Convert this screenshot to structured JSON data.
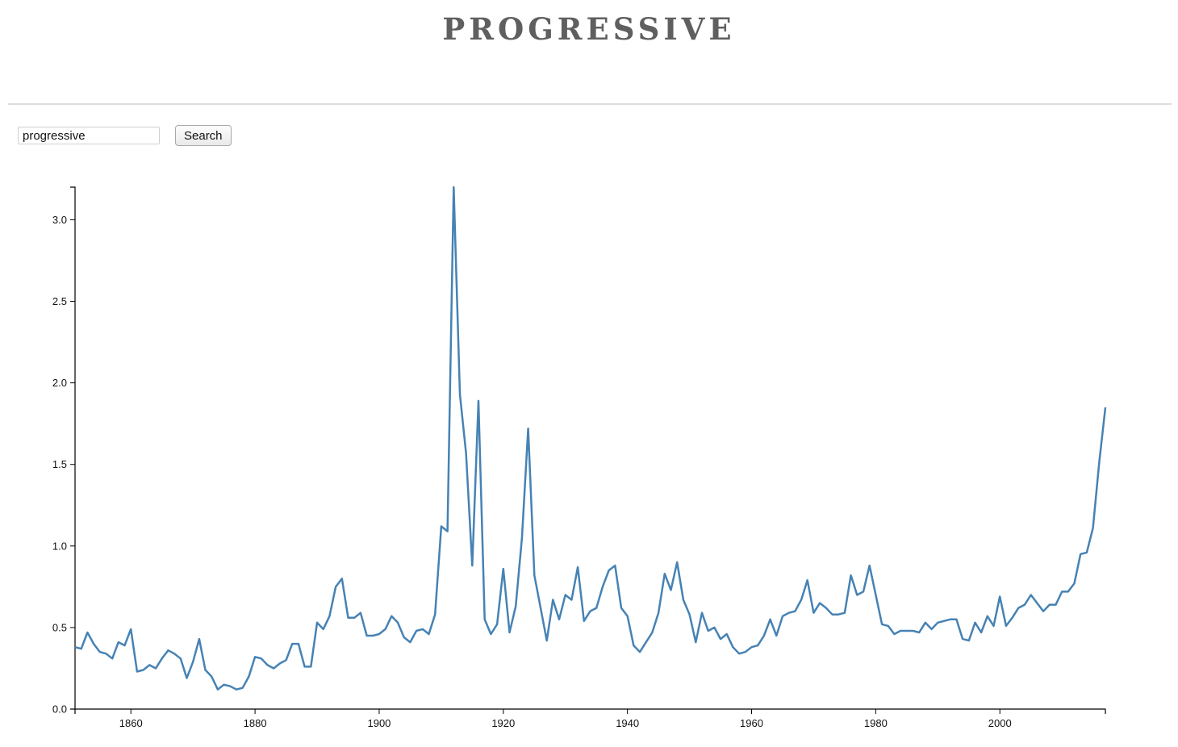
{
  "header": {
    "title": "PROGRESSIVE"
  },
  "search": {
    "value": "progressive",
    "button_label": "Search"
  },
  "colors": {
    "line": "#4682b4",
    "axis": "#000000",
    "title": "#5f5f5f"
  },
  "chart_data": {
    "type": "line",
    "title": "",
    "xlabel": "",
    "ylabel": "",
    "xlim": [
      1851,
      2017
    ],
    "ylim": [
      0,
      3.2
    ],
    "grid": false,
    "x_ticks": [
      1860,
      1880,
      1900,
      1920,
      1940,
      1960,
      1980,
      2000
    ],
    "y_ticks": [
      "0.0",
      "0.5",
      "1.0",
      "1.5",
      "2.0",
      "2.5",
      "3.0"
    ],
    "series": [
      {
        "x": [
          1851,
          1852,
          1853,
          1854,
          1855,
          1856,
          1857,
          1858,
          1859,
          1860,
          1861,
          1862,
          1863,
          1864,
          1865,
          1866,
          1867,
          1868,
          1869,
          1870,
          1871,
          1872,
          1873,
          1874,
          1875,
          1876,
          1877,
          1878,
          1879,
          1880,
          1881,
          1882,
          1883,
          1884,
          1885,
          1886,
          1887,
          1888,
          1889,
          1890,
          1891,
          1892,
          1893,
          1894,
          1895,
          1896,
          1897,
          1898,
          1899,
          1900,
          1901,
          1902,
          1903,
          1904,
          1905,
          1906,
          1907,
          1908,
          1909,
          1910,
          1911,
          1912,
          1913,
          1914,
          1915,
          1916,
          1917,
          1918,
          1919,
          1920,
          1921,
          1922,
          1923,
          1924,
          1925,
          1926,
          1927,
          1928,
          1929,
          1930,
          1931,
          1932,
          1933,
          1934,
          1935,
          1936,
          1937,
          1938,
          1939,
          1940,
          1941,
          1942,
          1943,
          1944,
          1945,
          1946,
          1947,
          1948,
          1949,
          1950,
          1951,
          1952,
          1953,
          1954,
          1955,
          1956,
          1957,
          1958,
          1959,
          1960,
          1961,
          1962,
          1963,
          1964,
          1965,
          1966,
          1967,
          1968,
          1969,
          1970,
          1971,
          1972,
          1973,
          1974,
          1975,
          1976,
          1977,
          1978,
          1979,
          1980,
          1981,
          1982,
          1983,
          1984,
          1985,
          1986,
          1987,
          1988,
          1989,
          1990,
          1991,
          1992,
          1993,
          1994,
          1995,
          1996,
          1997,
          1998,
          1999,
          2000,
          2001,
          2002,
          2003,
          2004,
          2005,
          2006,
          2007,
          2008,
          2009,
          2010,
          2011,
          2012,
          2013,
          2014,
          2015,
          2016,
          2017
        ],
        "values": [
          0.38,
          0.37,
          0.47,
          0.4,
          0.35,
          0.34,
          0.31,
          0.41,
          0.39,
          0.49,
          0.23,
          0.24,
          0.27,
          0.25,
          0.31,
          0.36,
          0.34,
          0.31,
          0.19,
          0.29,
          0.43,
          0.24,
          0.2,
          0.12,
          0.15,
          0.14,
          0.12,
          0.13,
          0.2,
          0.32,
          0.31,
          0.27,
          0.25,
          0.28,
          0.3,
          0.4,
          0.4,
          0.26,
          0.26,
          0.53,
          0.49,
          0.57,
          0.75,
          0.8,
          0.56,
          0.56,
          0.59,
          0.45,
          0.45,
          0.46,
          0.49,
          0.57,
          0.53,
          0.44,
          0.41,
          0.48,
          0.49,
          0.46,
          0.58,
          1.12,
          1.09,
          3.22,
          1.93,
          1.57,
          0.88,
          1.89,
          0.55,
          0.46,
          0.52,
          0.86,
          0.47,
          0.63,
          1.05,
          1.72,
          0.82,
          0.62,
          0.42,
          0.67,
          0.55,
          0.7,
          0.67,
          0.87,
          0.54,
          0.6,
          0.62,
          0.75,
          0.85,
          0.88,
          0.62,
          0.57,
          0.39,
          0.35,
          0.41,
          0.47,
          0.59,
          0.83,
          0.73,
          0.9,
          0.67,
          0.58,
          0.41,
          0.59,
          0.48,
          0.5,
          0.43,
          0.46,
          0.38,
          0.34,
          0.35,
          0.38,
          0.39,
          0.45,
          0.55,
          0.45,
          0.57,
          0.59,
          0.6,
          0.67,
          0.79,
          0.59,
          0.65,
          0.62,
          0.58,
          0.58,
          0.59,
          0.82,
          0.7,
          0.72,
          0.88,
          0.7,
          0.52,
          0.51,
          0.46,
          0.48,
          0.48,
          0.48,
          0.47,
          0.53,
          0.49,
          0.53,
          0.54,
          0.55,
          0.55,
          0.43,
          0.42,
          0.53,
          0.47,
          0.57,
          0.51,
          0.69,
          0.51,
          0.56,
          0.62,
          0.64,
          0.7,
          0.65,
          0.6,
          0.64,
          0.64,
          0.72,
          0.72,
          0.77,
          0.95,
          0.96,
          1.11,
          1.51,
          1.85
        ]
      }
    ]
  }
}
